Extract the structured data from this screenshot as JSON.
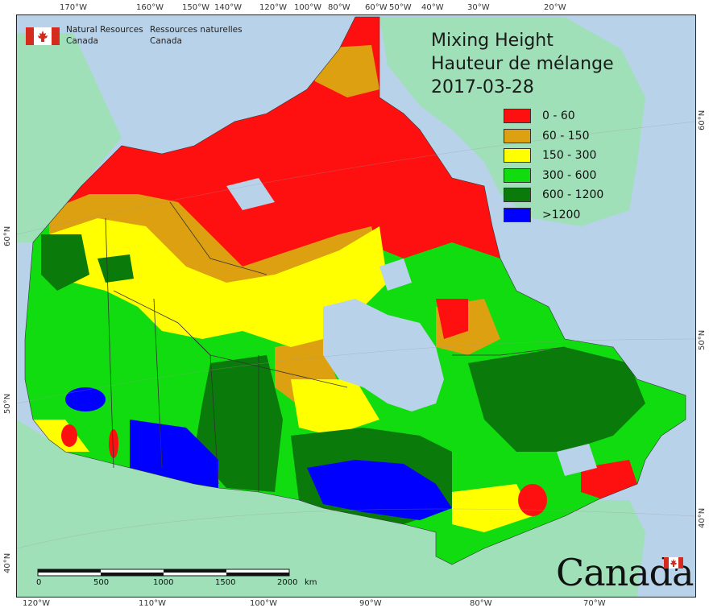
{
  "title": {
    "line1": "Mixing Height",
    "line2": "Hauteur de mélange",
    "date": "2017-03-28"
  },
  "agency": {
    "en_line1": "Natural Resources",
    "en_line2": "Canada",
    "fr_line1": "Ressources naturelles",
    "fr_line2": "Canada"
  },
  "legend": [
    {
      "label": "0 - 60",
      "color": "#ff1010"
    },
    {
      "label": "60 - 150",
      "color": "#dda010"
    },
    {
      "label": "150 - 300",
      "color": "#ffff00"
    },
    {
      "label": "300 - 600",
      "color": "#10dc10"
    },
    {
      "label": ">1200",
      "color": "#0000ff"
    }
  ],
  "legend_extra": {
    "label": "600 - 1200",
    "color": "#0a7a0a"
  },
  "graticule_top": [
    "170°W",
    "160°W",
    "150°W",
    "140°W",
    "120°W",
    "100°W",
    "80°W",
    "60°W",
    "50°W",
    "40°W",
    "30°W",
    "20°W"
  ],
  "graticule_bottom": [
    "120°W",
    "110°W",
    "100°W",
    "90°W",
    "80°W",
    "70°W"
  ],
  "graticule_left": [
    "60°N",
    "50°N",
    "40°N"
  ],
  "graticule_right": [
    "60°N",
    "50°N",
    "40°N"
  ],
  "scale_bar": {
    "ticks": [
      "0",
      "500",
      "1000",
      "1500",
      "2000"
    ],
    "unit": "km"
  },
  "wordmark": "Canada",
  "colors": {
    "ocean": "#b8d2ea",
    "land_outside": "#9fe0b8",
    "boundary": "#333333"
  }
}
